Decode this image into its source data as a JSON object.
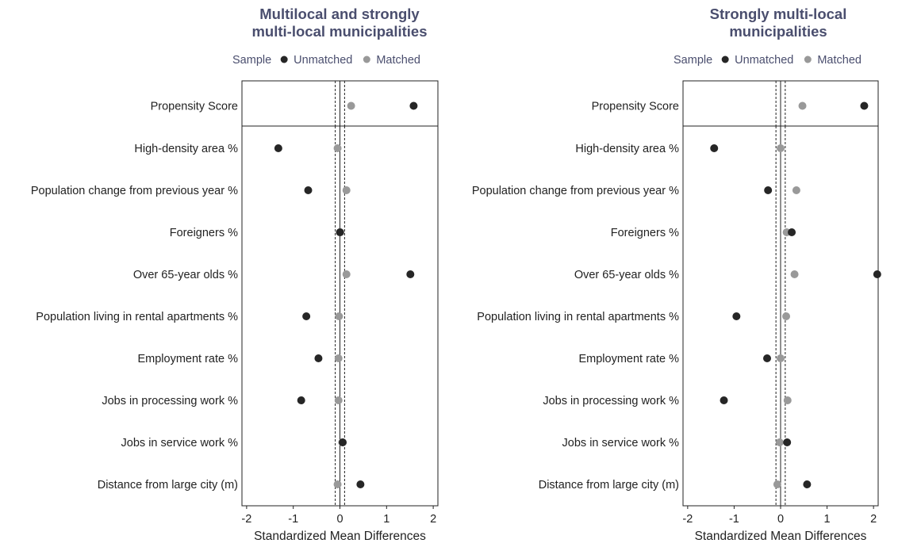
{
  "colors": {
    "unmatched": "#262626",
    "matched": "#999999",
    "title": "#4a4e6e",
    "axis": "#222222"
  },
  "chart_data": [
    {
      "type": "scatter",
      "title": [
        "Multilocal and strongly",
        "multi-local municipalities"
      ],
      "legend": {
        "title": "Sample",
        "entries": [
          "Unmatched",
          "Matched"
        ],
        "placement": "top"
      },
      "xlabel": "Standardized Mean Differences",
      "xlim": [
        -2.1,
        2.1
      ],
      "xticks": [
        -2,
        -1,
        0,
        1,
        2
      ],
      "reference_lines": {
        "solid": 0,
        "dashed": [
          -0.1,
          0.1
        ]
      },
      "grid": false,
      "top_row": [
        "Propensity Score"
      ],
      "categories": [
        "Propensity Score",
        "High-density area %",
        "Population change from previous year %",
        "Foreigners %",
        "Over 65-year olds %",
        "Population living in rental apartments %",
        "Employment rate %",
        "Jobs in processing work %",
        "Jobs in service work %",
        "Distance from large city (m)"
      ],
      "series": [
        {
          "name": "Unmatched",
          "values": [
            1.58,
            -1.32,
            -0.68,
            0.0,
            1.51,
            -0.72,
            -0.46,
            -0.83,
            0.06,
            0.44
          ]
        },
        {
          "name": "Matched",
          "values": [
            0.24,
            -0.05,
            0.14,
            0.01,
            0.14,
            -0.02,
            -0.03,
            -0.03,
            0.05,
            -0.05
          ]
        }
      ]
    },
    {
      "type": "scatter",
      "title": [
        "Strongly multi-local",
        "municipalities"
      ],
      "legend": {
        "title": "Sample",
        "entries": [
          "Unmatched",
          "Matched"
        ],
        "placement": "top"
      },
      "xlabel": "Standardized Mean Differences",
      "xlim": [
        -2.1,
        2.1
      ],
      "xticks": [
        -2,
        -1,
        0,
        1,
        2
      ],
      "reference_lines": {
        "solid": 0,
        "dashed": [
          -0.1,
          0.1
        ]
      },
      "grid": false,
      "top_row": [
        "Propensity Score"
      ],
      "categories": [
        "Propensity Score",
        "High-density area %",
        "Population change from previous year %",
        "Foreigners %",
        "Over 65-year olds %",
        "Population living in rental apartments %",
        "Employment rate %",
        "Jobs in processing work %",
        "Jobs in service work %",
        "Distance from large city (m)"
      ],
      "series": [
        {
          "name": "Unmatched",
          "values": [
            1.8,
            -1.43,
            -0.27,
            0.24,
            2.08,
            -0.95,
            -0.29,
            -1.22,
            0.14,
            0.57
          ]
        },
        {
          "name": "Matched",
          "values": [
            0.47,
            0.0,
            0.34,
            0.13,
            0.3,
            0.12,
            0.0,
            0.15,
            -0.02,
            -0.07
          ]
        }
      ]
    }
  ]
}
